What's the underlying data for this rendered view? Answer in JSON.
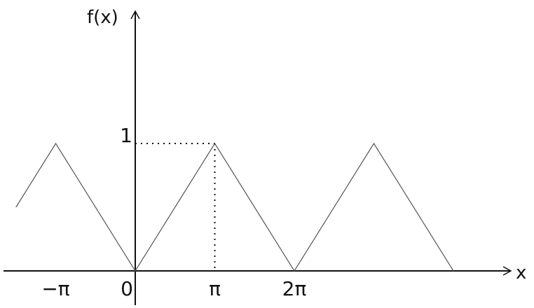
{
  "chart_data": {
    "type": "line",
    "xlabel": "x",
    "ylabel": "f(x)",
    "x_unit": "pi",
    "x": [
      -1.5,
      -1,
      0,
      1,
      2,
      3,
      4
    ],
    "values": [
      0.5,
      1,
      0,
      1,
      0,
      1,
      0
    ],
    "x_ticks": [
      {
        "value": -1,
        "label": "−π"
      },
      {
        "value": 0,
        "label": "0"
      },
      {
        "value": 1,
        "label": "π"
      },
      {
        "value": 2,
        "label": "2π"
      }
    ],
    "y_ticks": [
      {
        "value": 1,
        "label": "1"
      }
    ],
    "guide_point": {
      "x": 1,
      "y": 1
    },
    "grid": false,
    "colors": {
      "line": "#555555",
      "axis": "#111111"
    }
  }
}
